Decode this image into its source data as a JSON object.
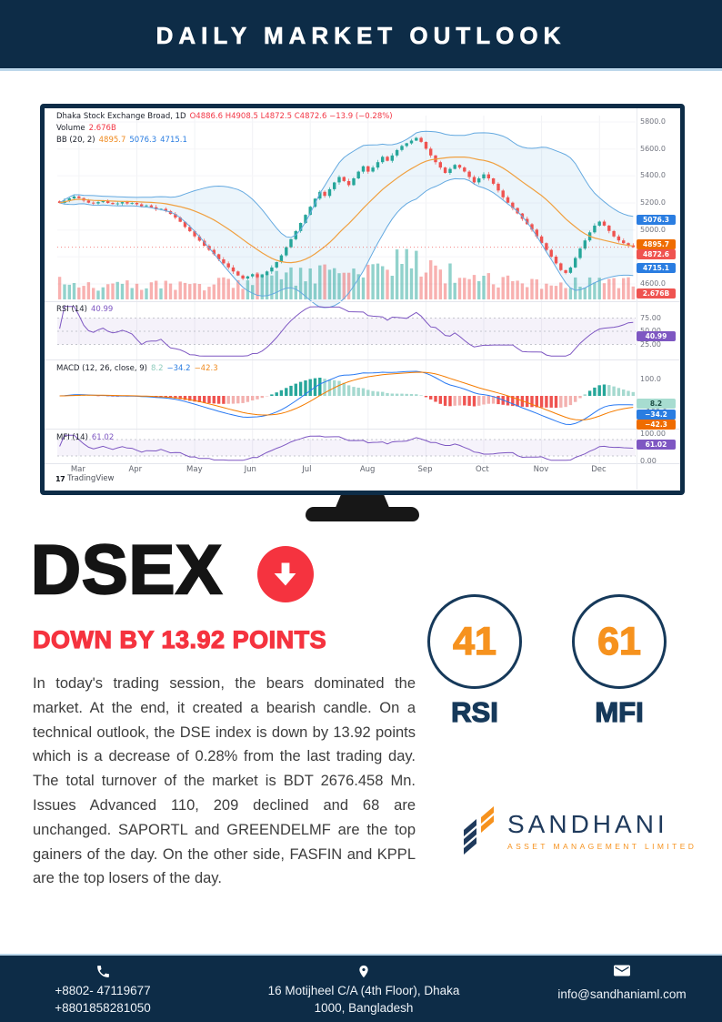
{
  "header": {
    "title": "DAILY MARKET OUTLOOK"
  },
  "colors": {
    "navy": "#0d2c47",
    "red": "#f5333f",
    "orange": "#f6921e",
    "rule_blue": "#bcd7ea"
  },
  "chart": {
    "legend": {
      "symbol": "Dhaka Stock Exchange Broad, 1D",
      "ohlc_text": "O4886.6  H4908.5  L4872.5  C4872.6  −13.9 (−0.28%)",
      "volume_label": "Volume",
      "volume_value": "2.676B",
      "bb_label": "BB (20, 2)",
      "bb_basis": "4895.7",
      "bb_upper": "5076.3",
      "bb_lower": "4715.1"
    },
    "rsi_label": "RSI (14)",
    "rsi_value": "40.99",
    "macd_label": "MACD (12, 26, close, 9)",
    "macd_hist_value": "8.2",
    "macd_line_value": "−34.2",
    "macd_signal_value": "−42.3",
    "mfi_label": "MFI (14)",
    "mfi_value": "61.02",
    "months": [
      "Mar",
      "Apr",
      "May",
      "Jun",
      "Jul",
      "Aug",
      "Sep",
      "Oct",
      "Nov",
      "Dec"
    ],
    "price_ticks": [
      "5800.0",
      "5600.0",
      "5400.0",
      "5200.0",
      "5000.0",
      "4800.0",
      "4600.0"
    ],
    "rsi_ticks": [
      "75.00",
      "50.00",
      "25.00"
    ],
    "macd_ticks": [
      "100.0",
      "−100.0"
    ],
    "mfi_ticks": [
      "100.00",
      "0.00"
    ],
    "badges": {
      "bb_upper": {
        "text": "5076.3",
        "bg": "#2a7de1"
      },
      "bb_basis": {
        "text": "4895.7",
        "bg": "#ef6c00"
      },
      "close": {
        "text": "4872.6",
        "bg": "#ef5350"
      },
      "bb_lower": {
        "text": "4715.1",
        "bg": "#2a7de1"
      },
      "volume": {
        "text": "2.676B",
        "bg": "#ef5350"
      },
      "rsi": {
        "text": "40.99",
        "bg": "#7e57c2"
      },
      "macd_hist": {
        "text": "8.2",
        "bg": "#a7dcd0",
        "fg": "#1d4d44"
      },
      "macd_line": {
        "text": "−34.2",
        "bg": "#2a7de1"
      },
      "macd_signal": {
        "text": "−42.3",
        "bg": "#ef6c00"
      },
      "mfi": {
        "text": "61.02",
        "bg": "#7e57c2"
      }
    },
    "watermark": "TradingView"
  },
  "chart_data": {
    "type": "candlestick",
    "title": "Dhaka Stock Exchange Broad, 1D",
    "x_labels": [
      "Mar",
      "Apr",
      "May",
      "Jun",
      "Jul",
      "Aug",
      "Sep",
      "Oct",
      "Nov",
      "Dec"
    ],
    "ohlc_today": {
      "open": 4886.6,
      "high": 4908.5,
      "low": 4872.5,
      "close": 4872.6,
      "change": -13.9,
      "change_pct": -0.28
    },
    "volume_total": "2.676B",
    "y_axis": {
      "min": 4550,
      "max": 5850,
      "ticks": [
        5800,
        5600,
        5400,
        5200,
        5000,
        4800,
        4600
      ]
    },
    "close_series": [
      5200,
      5216,
      5234,
      5248,
      5236,
      5218,
      5202,
      5196,
      5206,
      5214,
      5200,
      5192,
      5196,
      5206,
      5196,
      5200,
      5190,
      5176,
      5182,
      5168,
      5152,
      5156,
      5140,
      5118,
      5092,
      5060,
      5022,
      4990,
      4952,
      4920,
      4882,
      4852,
      4820,
      4782,
      4752,
      4722,
      4692,
      4662,
      4640,
      4656,
      4672,
      4650,
      4666,
      4692,
      4722,
      4762,
      4812,
      4872,
      4932,
      4992,
      5052,
      5112,
      5172,
      5232,
      5282,
      5252,
      5302,
      5352,
      5392,
      5362,
      5332,
      5382,
      5432,
      5472,
      5432,
      5462,
      5502,
      5542,
      5512,
      5552,
      5592,
      5622,
      5642,
      5662,
      5682,
      5652,
      5602,
      5552,
      5502,
      5462,
      5422,
      5452,
      5482,
      5462,
      5432,
      5392,
      5352,
      5382,
      5412,
      5382,
      5342,
      5292,
      5242,
      5202,
      5162,
      5122,
      5082,
      5042,
      5002,
      4952,
      4902,
      4852,
      4802,
      4752,
      4702,
      4682,
      4722,
      4792,
      4862,
      4922,
      4982,
      5032,
      5062,
      5032,
      4992,
      4952,
      4922,
      4902,
      4886,
      4872.6
    ],
    "volume_profile": [
      0.38,
      0.32,
      0.34,
      0.38,
      0.52,
      0.72,
      0.9,
      0.5,
      0.42,
      0.36
    ],
    "indicators": {
      "bb": {
        "period": 20,
        "stdev": 2,
        "basis": 4895.7,
        "upper": 5076.3,
        "lower": 4715.1
      },
      "rsi": {
        "period": 14,
        "value": 40.99,
        "bands": [
          75,
          50,
          25
        ]
      },
      "macd": {
        "fast": 12,
        "slow": 26,
        "source": "close",
        "signal_period": 9,
        "hist": 8.2,
        "macd": -34.2,
        "signal": -42.3
      },
      "mfi": {
        "period": 14,
        "value": 61.02,
        "bands": [
          80,
          20
        ]
      }
    },
    "style": {
      "up": "#26a69a",
      "down": "#ef5350",
      "bb_line": "#64a9e0",
      "bb_fill": "rgba(100,169,224,0.12)",
      "bb_basis": "#f0a040",
      "rsi_line": "#7e57c2",
      "macd_line": "#2979f2",
      "macd_signal": "#f57c00",
      "mfi_line": "#7e57c2",
      "grid": "#f1f2f5"
    }
  },
  "headline": {
    "index": "DSEX",
    "direction": "down",
    "subtitle": "DOWN BY 13.92 POINTS"
  },
  "summary": {
    "text": "In today's trading session, the bears dominated the market. At the end, it created a bearish candle. On a technical outlook, the DSE index is down by 13.92 points which is a decrease of 0.28% from the last trading day. The total turnover of the market is BDT 2676.458 Mn. Issues Advanced 110, 209 declined and 68 are unchanged. SAPORTL and GREENDELMF are the top gainers of the day. On the other side,  FASFIN and  KPPL are the top losers of the day."
  },
  "gauges": [
    {
      "value": "41",
      "label": "RSI"
    },
    {
      "value": "61",
      "label": "MFI"
    }
  ],
  "brand": {
    "name": "SANDHANI",
    "tagline": "ASSET MANAGEMENT LIMITED"
  },
  "footer": {
    "phone_lines": [
      "+8802- 47119677",
      "+8801858281050"
    ],
    "address_lines": [
      "16 Motijheel C/A (4th Floor), Dhaka",
      "1000, Bangladesh"
    ],
    "email": "info@sandhaniaml.com"
  }
}
